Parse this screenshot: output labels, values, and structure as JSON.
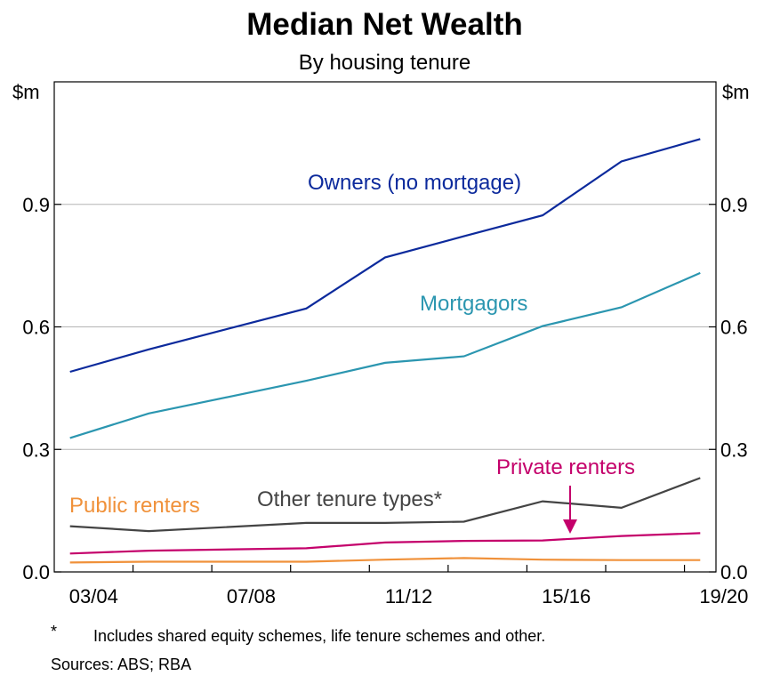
{
  "chart_data": {
    "type": "line",
    "title": "Median Net Wealth",
    "subtitle": "By housing tenure",
    "ylabel_left": "$m",
    "ylabel_right": "$m",
    "ylim": [
      0,
      1.2
    ],
    "yticks": [
      0,
      0.3,
      0.6,
      0.9
    ],
    "ytick_labels": [
      "0.0",
      "0.3",
      "0.6",
      "0.9"
    ],
    "xlim": [
      0,
      8.4
    ],
    "x": [
      0.2,
      1.2,
      3.2,
      4.2,
      5.2,
      6.2,
      7.2,
      8.2
    ],
    "x_ticks": [
      0,
      2,
      4,
      6,
      8
    ],
    "x_tick_labels": [
      "03/04",
      "07/08",
      "11/12",
      "15/16",
      "19/20"
    ],
    "grid": true,
    "series": [
      {
        "name": "Owners (no mortgage)",
        "color": "#0c2a9c",
        "label_color": "#0c2a9c",
        "values": [
          0.49,
          0.545,
          0.645,
          0.77,
          0.822,
          0.873,
          1.005,
          1.06
        ]
      },
      {
        "name": "Mortgagors",
        "color": "#2b96b0",
        "label_color": "#2b96b0",
        "values": [
          0.328,
          0.388,
          0.468,
          0.512,
          0.528,
          0.602,
          0.648,
          0.732
        ]
      },
      {
        "name": "Other tenure types*",
        "color": "#444444",
        "label_color": "#444444",
        "values": [
          0.112,
          0.1,
          0.12,
          0.12,
          0.123,
          0.173,
          0.157,
          0.23
        ]
      },
      {
        "name": "Private renters",
        "color": "#c4006b",
        "label_color": "#c4006b",
        "values": [
          0.045,
          0.052,
          0.058,
          0.072,
          0.076,
          0.077,
          0.088,
          0.095
        ]
      },
      {
        "name": "Public renters",
        "color": "#f0913a",
        "label_color": "#f0913a",
        "values": [
          0.023,
          0.025,
          0.025,
          0.03,
          0.034,
          0.03,
          0.029,
          0.029
        ]
      }
    ]
  },
  "footnote": {
    "marker": "*",
    "text": "Includes shared equity schemes, life tenure schemes and other."
  },
  "sources": "Sources: ABS; RBA"
}
